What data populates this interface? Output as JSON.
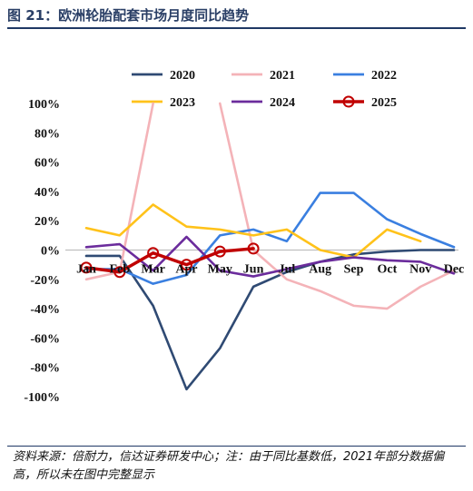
{
  "title": "图 21：欧洲轮胎配套市场月度同比趋势",
  "footnote": "资料来源：倍耐力，信达证券研发中心；注：由于同比基数低，2021年部分数据偏高，所以未在图中完整显示",
  "chart_data": {
    "type": "line",
    "categories": [
      "Jan",
      "Feb",
      "Mar",
      "Apr",
      "May",
      "Jun",
      "Jul",
      "Aug",
      "Sep",
      "Oct",
      "Nov",
      "Dec"
    ],
    "ylim": [
      -100,
      100
    ],
    "yticks": [
      "-100%",
      "-80%",
      "-60%",
      "-40%",
      "-20%",
      "0%",
      "20%",
      "40%",
      "60%",
      "80%",
      "100%"
    ],
    "ytick_values": [
      -100,
      -80,
      -60,
      -40,
      -20,
      0,
      20,
      40,
      60,
      80,
      100
    ],
    "legend_position": "top",
    "series": [
      {
        "name": "2020",
        "color": "#2f4a73",
        "marker": false,
        "values": [
          -4,
          -4,
          -38,
          -95,
          -67,
          -25,
          -15,
          -8,
          -3,
          -1,
          0,
          0
        ]
      },
      {
        "name": "2021",
        "color": "#f4b3b8",
        "marker": false,
        "values": [
          -20,
          -15,
          100,
          null,
          100,
          0,
          -20,
          -28,
          -38,
          -40,
          -25,
          -14
        ]
      },
      {
        "name": "2022",
        "color": "#3a7fe0",
        "marker": false,
        "values": [
          -13,
          -13,
          -23,
          -17,
          10,
          14,
          6,
          39,
          39,
          21,
          11,
          2
        ]
      },
      {
        "name": "2023",
        "color": "#ffc21a",
        "marker": false,
        "values": [
          15,
          10,
          31,
          16,
          14,
          10,
          14,
          0,
          -5,
          14,
          6,
          null
        ]
      },
      {
        "name": "2024",
        "color": "#6b2c9c",
        "marker": false,
        "values": [
          2,
          4,
          -14,
          9,
          -14,
          -18,
          -13,
          -8,
          -5,
          -7,
          -8,
          -16
        ]
      },
      {
        "name": "2025",
        "color": "#c00000",
        "marker": true,
        "values": [
          -12,
          -15,
          -2,
          -10,
          -1,
          1,
          null,
          null,
          null,
          null,
          null,
          null
        ]
      }
    ]
  }
}
